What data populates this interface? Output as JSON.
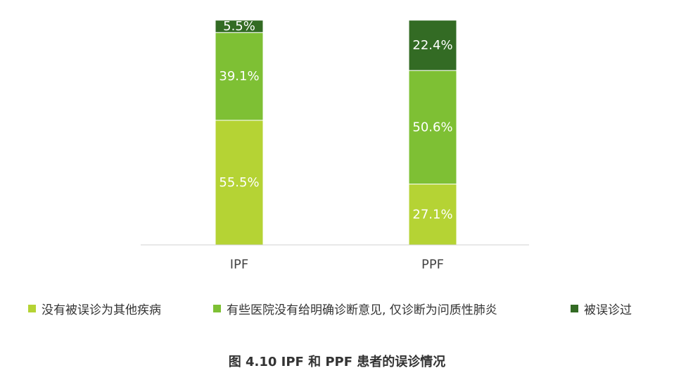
{
  "chart_data": {
    "type": "bar",
    "stacked": true,
    "percent": true,
    "categories": [
      "IPF",
      "PPF"
    ],
    "series": [
      {
        "name": "没有被误诊为其他疾病",
        "values": [
          55.5,
          27.1
        ],
        "labels": [
          "55.5%",
          "27.1%"
        ],
        "color": "#b5d334"
      },
      {
        "name": "有些医院没有给明确诊断意见, 仅诊断为问质性肺炎",
        "values": [
          39.1,
          50.6
        ],
        "labels": [
          "39.1%",
          "50.6%"
        ],
        "color": "#7ec034"
      },
      {
        "name": "被误诊过",
        "values": [
          5.5,
          22.4
        ],
        "labels": [
          "5.5%",
          "22.4%"
        ],
        "color": "#336b24"
      }
    ],
    "ylim": [
      0,
      100
    ],
    "grid": false,
    "legend_position": "bottom",
    "caption": "图 4.10 IPF 和 PPF 患者的误诊情况"
  }
}
